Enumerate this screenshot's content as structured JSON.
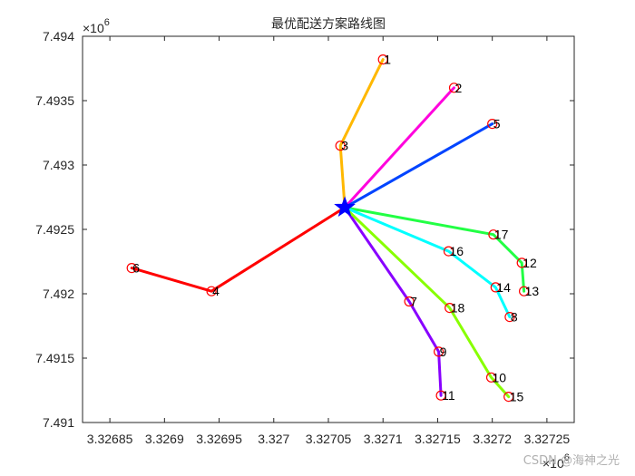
{
  "chart_data": {
    "type": "line",
    "title": "最优配送方案路线图",
    "xlabel": "",
    "ylabel": "",
    "x_exponent": "×10",
    "x_exponent_power": "6",
    "y_exponent": "×10",
    "y_exponent_power": "6",
    "xlim": [
      3.326825,
      3.327275
    ],
    "ylim": [
      7.491,
      7.494
    ],
    "x_ticks": [
      3.32685,
      3.3269,
      3.32695,
      3.327,
      3.32705,
      3.3271,
      3.32715,
      3.3272,
      3.32725
    ],
    "x_tick_labels": [
      "3.32685",
      "3.3269",
      "3.32695",
      "3.327",
      "3.32705",
      "3.3271",
      "3.32715",
      "3.3272",
      "3.32725"
    ],
    "y_ticks": [
      7.491,
      7.4915,
      7.492,
      7.4925,
      7.493,
      7.4935,
      7.494
    ],
    "y_tick_labels": [
      "7.491",
      "7.4915",
      "7.492",
      "7.4925",
      "7.493",
      "7.4935",
      "7.494"
    ],
    "grid": false,
    "legend": "none",
    "depot": {
      "x": 3.327065,
      "y": 7.49267,
      "marker": "pentagram",
      "color": "#0000ff"
    },
    "points": [
      {
        "label": "1",
        "x": 3.3271,
        "y": 7.49382
      },
      {
        "label": "2",
        "x": 3.327165,
        "y": 7.4936
      },
      {
        "label": "3",
        "x": 3.327061,
        "y": 7.49315
      },
      {
        "label": "4",
        "x": 3.326943,
        "y": 7.49202
      },
      {
        "label": "5",
        "x": 3.3272,
        "y": 7.49332
      },
      {
        "label": "6",
        "x": 3.32687,
        "y": 7.4922
      },
      {
        "label": "7",
        "x": 3.327124,
        "y": 7.49194
      },
      {
        "label": "8",
        "x": 3.327216,
        "y": 7.49182
      },
      {
        "label": "9",
        "x": 3.327151,
        "y": 7.49155
      },
      {
        "label": "10",
        "x": 3.327199,
        "y": 7.49135
      },
      {
        "label": "11",
        "x": 3.327153,
        "y": 7.49121
      },
      {
        "label": "12",
        "x": 3.327227,
        "y": 7.49224
      },
      {
        "label": "13",
        "x": 3.327229,
        "y": 7.49202
      },
      {
        "label": "14",
        "x": 3.327203,
        "y": 7.49205
      },
      {
        "label": "15",
        "x": 3.327215,
        "y": 7.4912
      },
      {
        "label": "16",
        "x": 3.32716,
        "y": 7.49233
      },
      {
        "label": "17",
        "x": 3.327201,
        "y": 7.49246
      },
      {
        "label": "18",
        "x": 3.327161,
        "y": 7.49189
      }
    ],
    "series": [
      {
        "color": "#ffb800",
        "route": [
          "depot",
          "3",
          "1"
        ]
      },
      {
        "color": "#ff00dd",
        "route": [
          "depot",
          "2"
        ]
      },
      {
        "color": "#0044ff",
        "route": [
          "depot",
          "5"
        ]
      },
      {
        "color": "#ff0000",
        "route": [
          "depot",
          "4",
          "6"
        ]
      },
      {
        "color": "#22ff44",
        "route": [
          "depot",
          "17",
          "12",
          "13"
        ]
      },
      {
        "color": "#00ffff",
        "route": [
          "depot",
          "16",
          "14",
          "8"
        ]
      },
      {
        "color": "#8800ff",
        "route": [
          "depot",
          "7",
          "9",
          "11"
        ]
      },
      {
        "color": "#88ff00",
        "route": [
          "depot",
          "18",
          "10",
          "15"
        ]
      }
    ],
    "marker_color": "#ff0000"
  },
  "watermark": "CSDN @海神之光"
}
